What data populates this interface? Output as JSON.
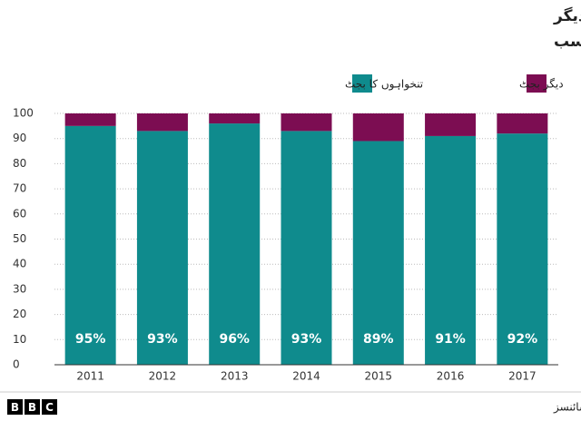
{
  "chart_data": {
    "type": "stacked_bar",
    "title_lines": [
      "خیبر پختونخوا میں تعلیم کے کرنٹ بجٹ میں تنخواہوں اور دیگر",
      "اخراجات کا تناسب"
    ],
    "categories": [
      "2011",
      "2012",
      "2013",
      "2014",
      "2015",
      "2016",
      "2017"
    ],
    "series": [
      {
        "name": "تنخواہوں کا بجٹ",
        "color": "#0f8b8d",
        "values": [
          95,
          93,
          96,
          93,
          89,
          91,
          92
        ],
        "value_labels": [
          "95%",
          "93%",
          "96%",
          "93%",
          "89%",
          "91%",
          "92%"
        ]
      },
      {
        "name": "دیگر بجٹ",
        "color": "#7c0d52",
        "values": [
          5,
          7,
          4,
          7,
          11,
          9,
          8
        ]
      }
    ],
    "ylim": [
      0,
      100
    ],
    "yticks": [
      0,
      10,
      20,
      30,
      40,
      50,
      60,
      70,
      80,
      90,
      100
    ],
    "grid": true,
    "source": "ذریعہ: انسٹیٹیوٹ آف سوشل اینڈ پالیسی سائنسز",
    "logo": [
      "B",
      "B",
      "C"
    ]
  }
}
